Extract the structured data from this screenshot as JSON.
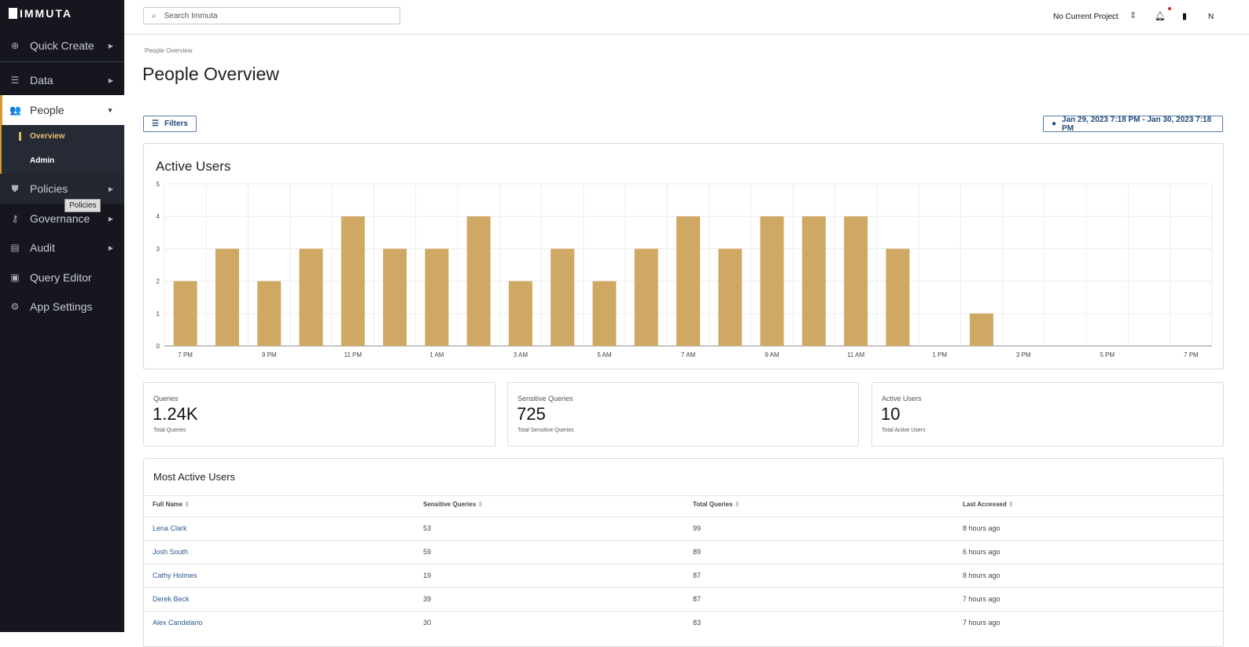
{
  "brand": "IMMUTA",
  "sidebar": {
    "items": [
      {
        "label": "Quick Create",
        "icon": "plus-circle-icon"
      },
      {
        "label": "Data",
        "icon": "database-icon"
      },
      {
        "label": "People",
        "icon": "people-icon"
      },
      {
        "label": "Policies",
        "icon": "shield-icon"
      },
      {
        "label": "Governance",
        "icon": "key-icon"
      },
      {
        "label": "Audit",
        "icon": "audit-icon"
      },
      {
        "label": "Query Editor",
        "icon": "terminal-icon"
      },
      {
        "label": "App Settings",
        "icon": "gear-icon"
      }
    ],
    "people_sub": [
      "Overview",
      "Admin"
    ],
    "tooltip": "Policies"
  },
  "topbar": {
    "search_placeholder": "Search Immuta",
    "project": "No Current Project",
    "user_initial": "N"
  },
  "breadcrumb": "People Overview",
  "title": "People Overview",
  "filters_label": "Filters",
  "date_range": "Jan 29, 2023 7:18 PM - Jan 30, 2023 7:18 PM",
  "stats": [
    {
      "label": "Queries",
      "value": "1.24K",
      "sub": "Total Queries"
    },
    {
      "label": "Sensitive Queries",
      "value": "725",
      "sub": "Total Sensitive Queries"
    },
    {
      "label": "Active Users",
      "value": "10",
      "sub": "Total Active Users"
    }
  ],
  "table": {
    "title": "Most Active Users",
    "headers": [
      "Full Name",
      "Sensitive Queries",
      "Total Queries",
      "Last Accessed"
    ],
    "rows": [
      [
        "Lena Clark",
        "53",
        "99",
        "8 hours ago"
      ],
      [
        "Josh South",
        "59",
        "89",
        "6 hours ago"
      ],
      [
        "Cathy Holmes",
        "19",
        "87",
        "8 hours ago"
      ],
      [
        "Derek Beck",
        "39",
        "87",
        "7 hours ago"
      ],
      [
        "Alex Candelario",
        "30",
        "83",
        "7 hours ago"
      ]
    ]
  },
  "chart_data": {
    "type": "bar",
    "title": "Active Users",
    "categories": [
      "7 PM",
      "8 PM",
      "9 PM",
      "10 PM",
      "11 PM",
      "12 AM",
      "1 AM",
      "2 AM",
      "3 AM",
      "4 AM",
      "5 AM",
      "6 AM",
      "7 AM",
      "8 AM",
      "9 AM",
      "10 AM",
      "11 AM",
      "12 PM",
      "1 PM",
      "2 PM",
      "3 PM",
      "4 PM",
      "5 PM",
      "6 PM",
      "7 PM"
    ],
    "values": [
      2,
      3,
      2,
      3,
      4,
      3,
      3,
      4,
      2,
      3,
      2,
      3,
      4,
      3,
      4,
      4,
      4,
      3,
      0,
      1,
      0,
      0,
      0,
      0,
      0
    ],
    "ylim": [
      0,
      5
    ],
    "yticks": [
      "0",
      "1",
      "2",
      "3",
      "4",
      "5"
    ],
    "xticks": [
      "7 PM",
      "9 PM",
      "11 PM",
      "1 AM",
      "3 AM",
      "5 AM",
      "7 AM",
      "9 AM",
      "11 AM",
      "1 PM",
      "3 PM",
      "5 PM",
      "7 PM"
    ],
    "bar_color": "#cfa964",
    "grid": true
  }
}
